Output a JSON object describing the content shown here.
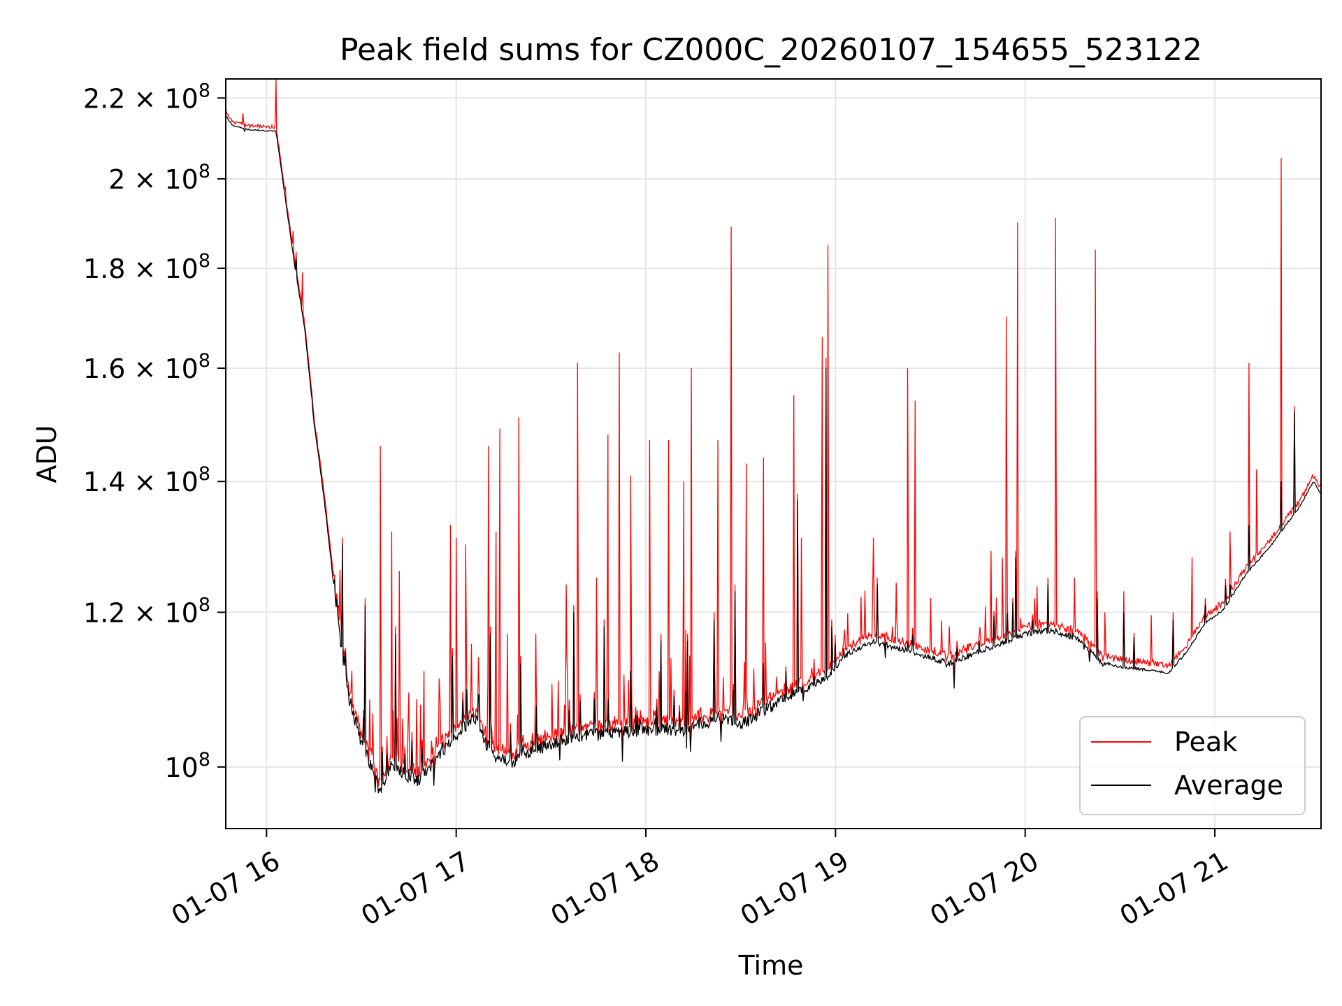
{
  "chart_data": {
    "type": "line",
    "title": "Peak field sums for CZ000C_20260107_154655_523122",
    "xlabel": "Time",
    "ylabel": "ADU",
    "y_scale": "log",
    "xlim_hours": [
      15.785,
      21.56
    ],
    "ylim": [
      93000000,
      225000000
    ],
    "x_ticks": [
      {
        "hour": 16,
        "label": "01-07 16"
      },
      {
        "hour": 17,
        "label": "01-07 17"
      },
      {
        "hour": 18,
        "label": "01-07 18"
      },
      {
        "hour": 19,
        "label": "01-07 19"
      },
      {
        "hour": 20,
        "label": "01-07 20"
      },
      {
        "hour": 21,
        "label": "01-07 21"
      }
    ],
    "y_ticks": [
      {
        "value": 100000000,
        "mant": "",
        "exp": "8"
      },
      {
        "value": 120000000,
        "mant": "1.2",
        "exp": "8"
      },
      {
        "value": 140000000,
        "mant": "1.4",
        "exp": "8"
      },
      {
        "value": 160000000,
        "mant": "1.6",
        "exp": "8"
      },
      {
        "value": 180000000,
        "mant": "1.8",
        "exp": "8"
      },
      {
        "value": 200000000,
        "mant": "2",
        "exp": "8"
      },
      {
        "value": 220000000,
        "mant": "2.2",
        "exp": "8"
      }
    ],
    "grid": true,
    "legend": {
      "position": "lower-right",
      "entries": [
        {
          "label": "Peak",
          "color": "#ff0000"
        },
        {
          "label": "Average",
          "color": "#000000"
        }
      ]
    },
    "baseline_M": [
      [
        15.785,
        215.5
      ],
      [
        15.82,
        213
      ],
      [
        15.9,
        212
      ],
      [
        16.05,
        211.5
      ],
      [
        16.1,
        195
      ],
      [
        16.15,
        180
      ],
      [
        16.2,
        168
      ],
      [
        16.25,
        150
      ],
      [
        16.3,
        138
      ],
      [
        16.35,
        125
      ],
      [
        16.4,
        114
      ],
      [
        16.45,
        107
      ],
      [
        16.5,
        103
      ],
      [
        16.55,
        100
      ],
      [
        16.6,
        97
      ],
      [
        16.65,
        100
      ],
      [
        16.7,
        99.5
      ],
      [
        16.8,
        98.5
      ],
      [
        16.9,
        101
      ],
      [
        17.0,
        104
      ],
      [
        17.1,
        106
      ],
      [
        17.15,
        103
      ],
      [
        17.2,
        101.5
      ],
      [
        17.3,
        100.5
      ],
      [
        17.4,
        102
      ],
      [
        17.6,
        103.5
      ],
      [
        17.8,
        104
      ],
      [
        18.0,
        104.5
      ],
      [
        18.2,
        104.5
      ],
      [
        18.4,
        106
      ],
      [
        18.5,
        105
      ],
      [
        18.6,
        106.5
      ],
      [
        18.8,
        109.5
      ],
      [
        18.95,
        111
      ],
      [
        19.05,
        114
      ],
      [
        19.2,
        116
      ],
      [
        19.4,
        114.5
      ],
      [
        19.6,
        113
      ],
      [
        19.8,
        115
      ],
      [
        20.0,
        117
      ],
      [
        20.15,
        117.5
      ],
      [
        20.3,
        116
      ],
      [
        20.4,
        113
      ],
      [
        20.5,
        112.5
      ],
      [
        20.7,
        112
      ],
      [
        20.75,
        111.5
      ],
      [
        20.85,
        114.5
      ],
      [
        20.95,
        118.5
      ],
      [
        21.05,
        120.5
      ],
      [
        21.15,
        125
      ],
      [
        21.3,
        130
      ],
      [
        21.45,
        136
      ],
      [
        21.52,
        140
      ],
      [
        21.56,
        138
      ]
    ],
    "avg_spikes_M": [
      [
        16.14,
        182
      ],
      [
        16.24,
        151
      ],
      [
        16.4,
        130
      ],
      [
        16.52,
        121
      ],
      [
        16.68,
        117
      ],
      [
        16.98,
        114
      ],
      [
        17.18,
        117
      ],
      [
        17.34,
        113
      ],
      [
        17.62,
        120
      ],
      [
        17.78,
        118
      ],
      [
        17.92,
        112
      ],
      [
        18.08,
        116
      ],
      [
        18.22,
        116
      ],
      [
        18.36,
        119
      ],
      [
        18.47,
        123
      ],
      [
        18.62,
        113
      ],
      [
        18.8,
        137
      ],
      [
        18.95,
        160
      ],
      [
        18.98,
        118
      ],
      [
        19.22,
        124
      ],
      [
        19.38,
        116
      ],
      [
        19.64,
        115
      ],
      [
        19.95,
        128
      ],
      [
        20.12,
        124
      ],
      [
        20.38,
        122
      ],
      [
        20.52,
        120
      ],
      [
        20.78,
        119
      ],
      [
        20.95,
        121
      ],
      [
        21.08,
        124
      ],
      [
        21.18,
        133
      ],
      [
        21.35,
        140
      ],
      [
        21.42,
        152
      ]
    ],
    "peak_spikes_M": [
      [
        16.05,
        226
      ],
      [
        16.1,
        198
      ],
      [
        16.14,
        188
      ],
      [
        16.17,
        172
      ],
      [
        16.2,
        157
      ],
      [
        16.23,
        146
      ],
      [
        16.27,
        135
      ],
      [
        16.33,
        128
      ],
      [
        16.38,
        121
      ],
      [
        16.45,
        112
      ],
      [
        16.52,
        121
      ],
      [
        16.6,
        146
      ],
      [
        16.66,
        132
      ],
      [
        16.7,
        126
      ],
      [
        16.83,
        112
      ],
      [
        16.91,
        111
      ],
      [
        16.97,
        133
      ],
      [
        17.0,
        131
      ],
      [
        17.05,
        130
      ],
      [
        17.17,
        146
      ],
      [
        17.21,
        132
      ],
      [
        17.23,
        149
      ],
      [
        17.27,
        117
      ],
      [
        17.33,
        151
      ],
      [
        17.42,
        117
      ],
      [
        17.58,
        124
      ],
      [
        17.64,
        161
      ],
      [
        17.74,
        125
      ],
      [
        17.8,
        148
      ],
      [
        17.86,
        163
      ],
      [
        17.92,
        141
      ],
      [
        18.02,
        147
      ],
      [
        18.12,
        147
      ],
      [
        18.2,
        140
      ],
      [
        18.24,
        160
      ],
      [
        18.38,
        147
      ],
      [
        18.45,
        189
      ],
      [
        18.53,
        143
      ],
      [
        18.62,
        144
      ],
      [
        18.78,
        155
      ],
      [
        18.82,
        131
      ],
      [
        18.93,
        166
      ],
      [
        18.95,
        162
      ],
      [
        18.96,
        185
      ],
      [
        19.2,
        131
      ],
      [
        19.3,
        118
      ],
      [
        19.38,
        160
      ],
      [
        19.42,
        154
      ],
      [
        19.6,
        118
      ],
      [
        19.82,
        129
      ],
      [
        19.88,
        128
      ],
      [
        19.9,
        170
      ],
      [
        19.96,
        190
      ],
      [
        20.05,
        122
      ],
      [
        20.16,
        191
      ],
      [
        20.26,
        125
      ],
      [
        20.37,
        184
      ],
      [
        20.42,
        120
      ],
      [
        20.52,
        123
      ],
      [
        20.88,
        128
      ],
      [
        21.08,
        132
      ],
      [
        21.18,
        161
      ],
      [
        21.22,
        142
      ],
      [
        21.35,
        205
      ]
    ]
  }
}
